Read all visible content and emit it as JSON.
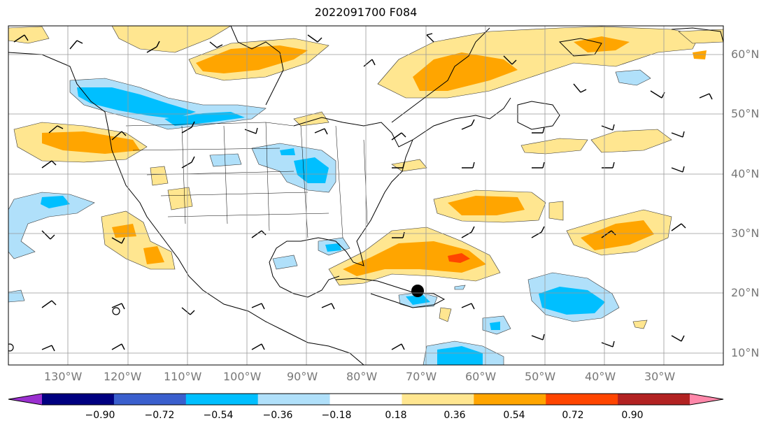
{
  "title": "2022091700 F084",
  "lat_labels": [
    "60°N",
    "50°N",
    "40°N",
    "30°N",
    "20°N",
    "10°N"
  ],
  "lon_labels": [
    "130°W",
    "120°W",
    "110°W",
    "100°W",
    "90°W",
    "80°W",
    "70°W",
    "60°W",
    "50°W",
    "40°W",
    "30°W"
  ],
  "colorbar": {
    "colors": [
      "#9b30d0",
      "#000080",
      "#3a5fcd",
      "#00bfff",
      "#b0e0fa",
      "#ffffff",
      "#ffe690",
      "#ffa500",
      "#ff4500",
      "#b22222",
      "#ff88aa"
    ],
    "tick_labels": [
      "−0.90",
      "−0.72",
      "−0.54",
      "−0.36",
      "−0.18",
      "0.18",
      "0.36",
      "0.54",
      "0.72",
      "0.90"
    ]
  }
}
